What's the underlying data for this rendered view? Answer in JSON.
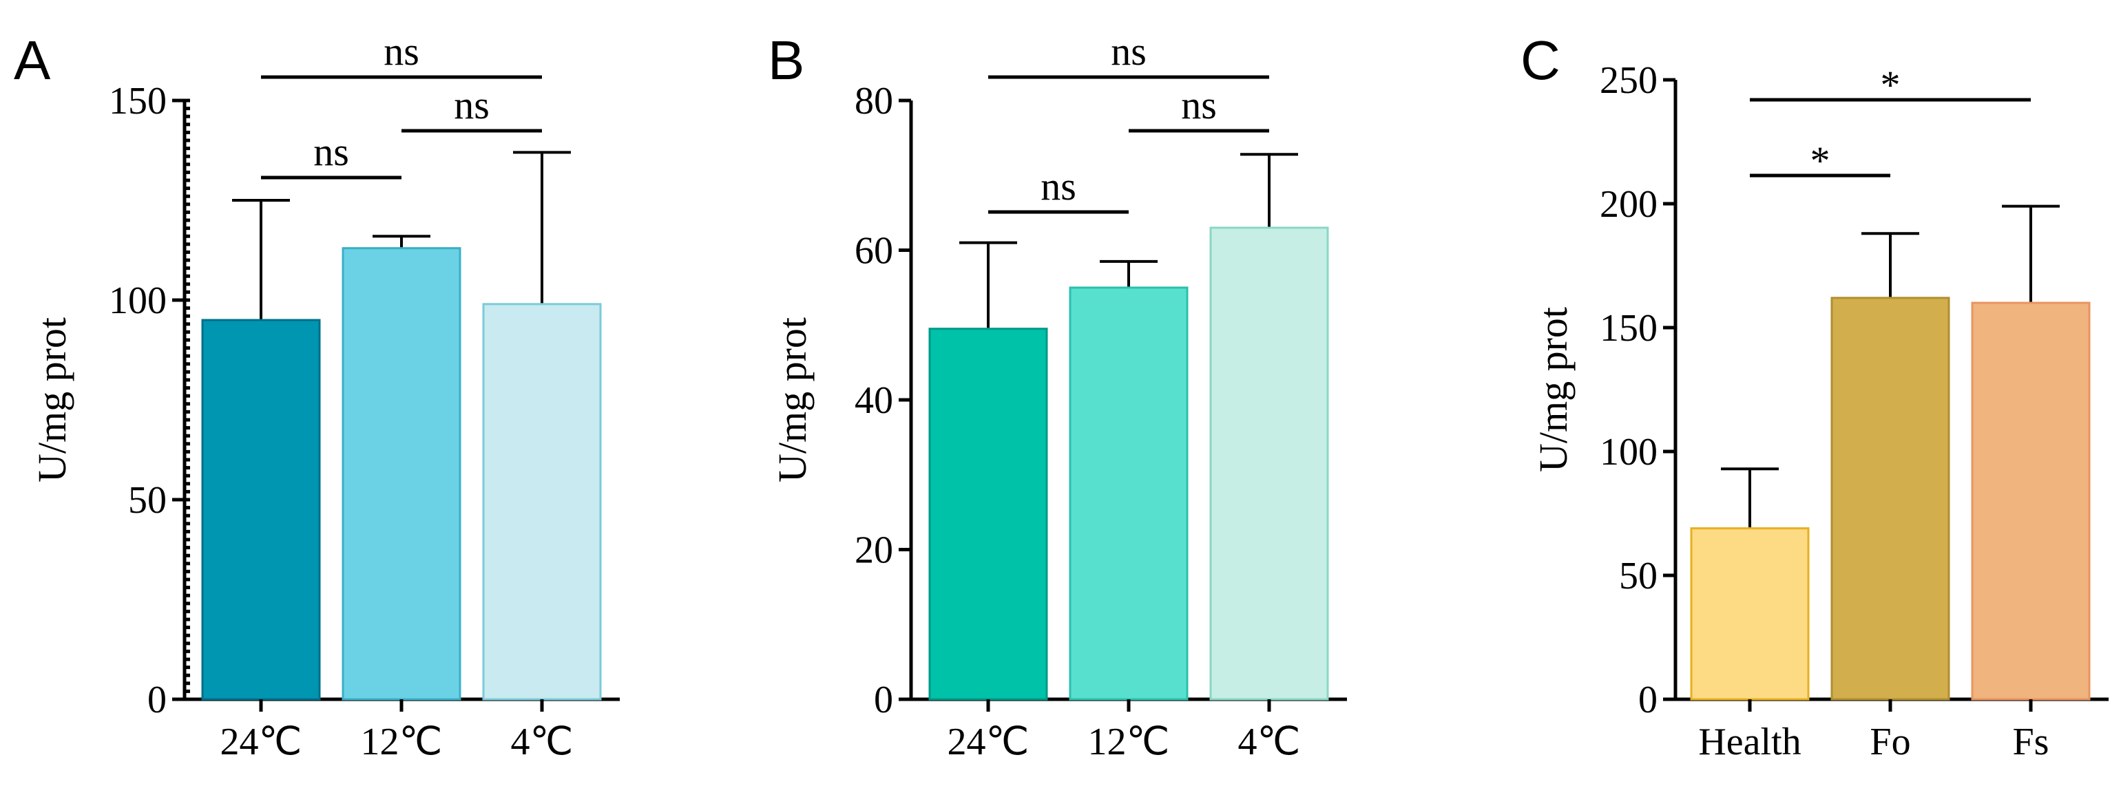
{
  "chart_data": [
    {
      "panel": "A",
      "type": "bar",
      "categories": [
        "24℃",
        "12℃",
        "4℃"
      ],
      "values": [
        95,
        113,
        99
      ],
      "errors": [
        30,
        3,
        38
      ],
      "ylabel": "U/mg prot",
      "xlabel": "",
      "ylim": [
        0,
        150
      ],
      "yticks": [
        0,
        50,
        100,
        150
      ],
      "minor_ticks": true,
      "colors": {
        "fill": [
          "#0096B2",
          "#6AD2E4",
          "#C8EAF0"
        ],
        "stroke": [
          "#00708A",
          "#3AAFC7",
          "#7CCBD9"
        ]
      },
      "significance": [
        {
          "from": 0,
          "to": 1,
          "label": "ns"
        },
        {
          "from": 1,
          "to": 2,
          "label": "ns"
        },
        {
          "from": 0,
          "to": 2,
          "label": "ns"
        }
      ]
    },
    {
      "panel": "B",
      "type": "bar",
      "categories": [
        "24℃",
        "12℃",
        "4℃"
      ],
      "values": [
        49.5,
        55,
        63
      ],
      "errors": [
        11.5,
        3.5,
        9.8
      ],
      "ylabel": "U/mg prot",
      "xlabel": "",
      "ylim": [
        0,
        80
      ],
      "yticks": [
        0,
        20,
        40,
        60,
        80
      ],
      "minor_ticks": false,
      "colors": {
        "fill": [
          "#00C2A8",
          "#58E0CF",
          "#C6EEE4"
        ],
        "stroke": [
          "#009A86",
          "#2DBFAE",
          "#8AD7C6"
        ]
      },
      "significance": [
        {
          "from": 0,
          "to": 1,
          "label": "ns"
        },
        {
          "from": 1,
          "to": 2,
          "label": "ns"
        },
        {
          "from": 0,
          "to": 2,
          "label": "ns"
        }
      ]
    },
    {
      "panel": "C",
      "type": "bar",
      "categories": [
        "Health",
        "Fo",
        "Fs"
      ],
      "values": [
        69,
        162,
        160
      ],
      "errors": [
        24,
        26,
        39
      ],
      "ylabel": "U/mg prot",
      "xlabel": "",
      "ylim": [
        0,
        250
      ],
      "yticks": [
        0,
        50,
        100,
        150,
        200,
        250
      ],
      "minor_ticks": false,
      "colors": {
        "fill": [
          "#FDDB85",
          "#D2AE4C",
          "#F0B47F"
        ],
        "stroke": [
          "#E8B020",
          "#B08F30",
          "#E89460"
        ]
      },
      "significance": [
        {
          "from": 0,
          "to": 1,
          "label": "*"
        },
        {
          "from": 0,
          "to": 2,
          "label": "*"
        }
      ]
    }
  ]
}
